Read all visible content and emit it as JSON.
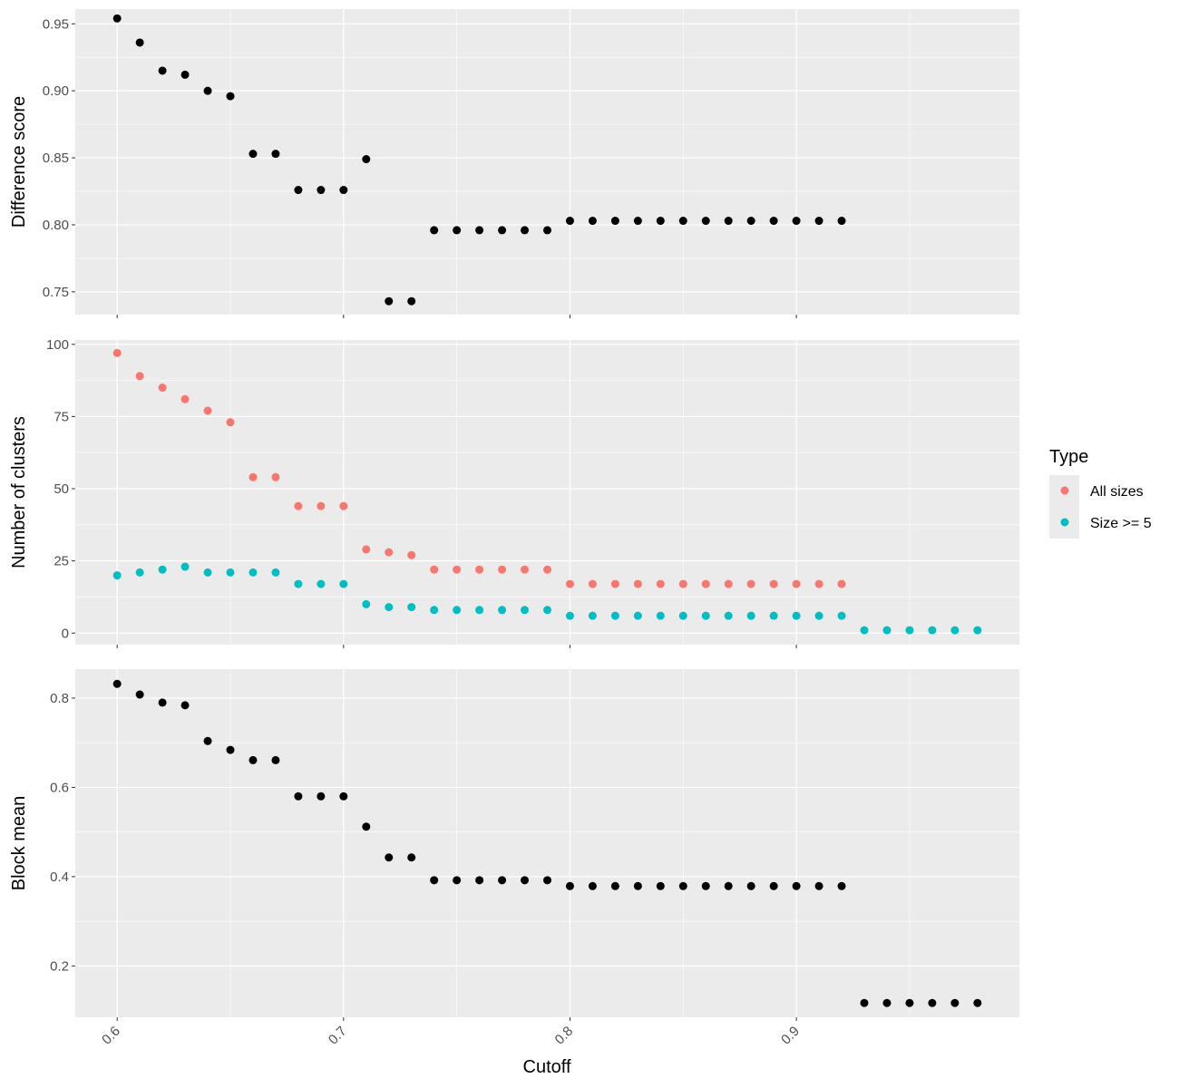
{
  "chart_data": {
    "type": "scatter",
    "xlabel": "Cutoff",
    "x_ticks": [
      "0.6",
      "0.7",
      "0.8",
      "0.9"
    ],
    "xlim": [
      0.5815,
      0.9985
    ],
    "colors": {
      "panel_bg": "#ebebeb",
      "grid": "#ffffff",
      "points": "#000000"
    },
    "legend": {
      "title": "Type",
      "position": "right",
      "entries": [
        {
          "label": "All sizes",
          "color": "#F8766D"
        },
        {
          "label": "Size >= 5",
          "color": "#00BFC4"
        }
      ]
    },
    "panels": [
      {
        "ylabel": "Difference score",
        "ylim": [
          0.733,
          0.961
        ],
        "y_ticks": [
          0.75,
          0.8,
          0.85,
          0.9,
          0.95
        ],
        "y_tick_labels": [
          "0.75",
          "0.80",
          "0.85",
          "0.90",
          "0.95"
        ],
        "series": [
          {
            "color": "#000000",
            "x": [
              0.6,
              0.61,
              0.62,
              0.63,
              0.64,
              0.65,
              0.66,
              0.67,
              0.68,
              0.69,
              0.7,
              0.71,
              0.72,
              0.73,
              0.74,
              0.75,
              0.76,
              0.77,
              0.78,
              0.79,
              0.8,
              0.81,
              0.82,
              0.83,
              0.84,
              0.85,
              0.86,
              0.87,
              0.88,
              0.89,
              0.9,
              0.91,
              0.92
            ],
            "y": [
              0.954,
              0.936,
              0.915,
              0.912,
              0.9,
              0.896,
              0.853,
              0.853,
              0.826,
              0.826,
              0.826,
              0.849,
              0.743,
              0.743,
              0.796,
              0.796,
              0.796,
              0.796,
              0.796,
              0.796,
              0.803,
              0.803,
              0.803,
              0.803,
              0.803,
              0.803,
              0.803,
              0.803,
              0.803,
              0.803,
              0.803,
              0.803,
              0.803
            ]
          }
        ]
      },
      {
        "ylabel": "Number of clusters",
        "ylim": [
          -4,
          101.5
        ],
        "y_ticks": [
          0,
          25,
          50,
          75,
          100
        ],
        "y_tick_labels": [
          "0",
          "25",
          "50",
          "75",
          "100"
        ],
        "series": [
          {
            "name": "All sizes",
            "color": "#F8766D",
            "x": [
              0.6,
              0.61,
              0.62,
              0.63,
              0.64,
              0.65,
              0.66,
              0.67,
              0.68,
              0.69,
              0.7,
              0.71,
              0.72,
              0.73,
              0.74,
              0.75,
              0.76,
              0.77,
              0.78,
              0.79,
              0.8,
              0.81,
              0.82,
              0.83,
              0.84,
              0.85,
              0.86,
              0.87,
              0.88,
              0.89,
              0.9,
              0.91,
              0.92
            ],
            "y": [
              97,
              89,
              85,
              81,
              77,
              73,
              54,
              54,
              44,
              44,
              44,
              29,
              28,
              27,
              22,
              22,
              22,
              22,
              22,
              22,
              17,
              17,
              17,
              17,
              17,
              17,
              17,
              17,
              17,
              17,
              17,
              17,
              17
            ]
          },
          {
            "name": "Size >= 5",
            "color": "#00BFC4",
            "x": [
              0.6,
              0.61,
              0.62,
              0.63,
              0.64,
              0.65,
              0.66,
              0.67,
              0.68,
              0.69,
              0.7,
              0.71,
              0.72,
              0.73,
              0.74,
              0.75,
              0.76,
              0.77,
              0.78,
              0.79,
              0.8,
              0.81,
              0.82,
              0.83,
              0.84,
              0.85,
              0.86,
              0.87,
              0.88,
              0.89,
              0.9,
              0.91,
              0.92,
              0.93,
              0.94,
              0.95,
              0.96,
              0.97,
              0.98
            ],
            "y": [
              20,
              21,
              22,
              23,
              21,
              21,
              21,
              21,
              17,
              17,
              17,
              10,
              9,
              9,
              8,
              8,
              8,
              8,
              8,
              8,
              6,
              6,
              6,
              6,
              6,
              6,
              6,
              6,
              6,
              6,
              6,
              6,
              6,
              1,
              1,
              1,
              1,
              1,
              1
            ]
          }
        ]
      },
      {
        "ylabel": "Block mean",
        "ylim": [
          0.085,
          0.865
        ],
        "y_ticks": [
          0.2,
          0.4,
          0.6,
          0.8
        ],
        "y_tick_labels": [
          "0.2",
          "0.4",
          "0.6",
          "0.8"
        ],
        "series": [
          {
            "color": "#000000",
            "x": [
              0.6,
              0.61,
              0.62,
              0.63,
              0.64,
              0.65,
              0.66,
              0.67,
              0.68,
              0.69,
              0.7,
              0.71,
              0.72,
              0.73,
              0.74,
              0.75,
              0.76,
              0.77,
              0.78,
              0.79,
              0.8,
              0.81,
              0.82,
              0.83,
              0.84,
              0.85,
              0.86,
              0.87,
              0.88,
              0.89,
              0.9,
              0.91,
              0.92,
              0.93,
              0.94,
              0.95,
              0.96,
              0.97,
              0.98
            ],
            "y": [
              0.832,
              0.808,
              0.79,
              0.784,
              0.704,
              0.684,
              0.661,
              0.661,
              0.58,
              0.58,
              0.58,
              0.512,
              0.443,
              0.443,
              0.392,
              0.392,
              0.392,
              0.392,
              0.392,
              0.392,
              0.379,
              0.379,
              0.379,
              0.379,
              0.379,
              0.379,
              0.379,
              0.379,
              0.379,
              0.379,
              0.379,
              0.379,
              0.379,
              0.117,
              0.117,
              0.117,
              0.117,
              0.117,
              0.117
            ]
          }
        ]
      }
    ]
  }
}
